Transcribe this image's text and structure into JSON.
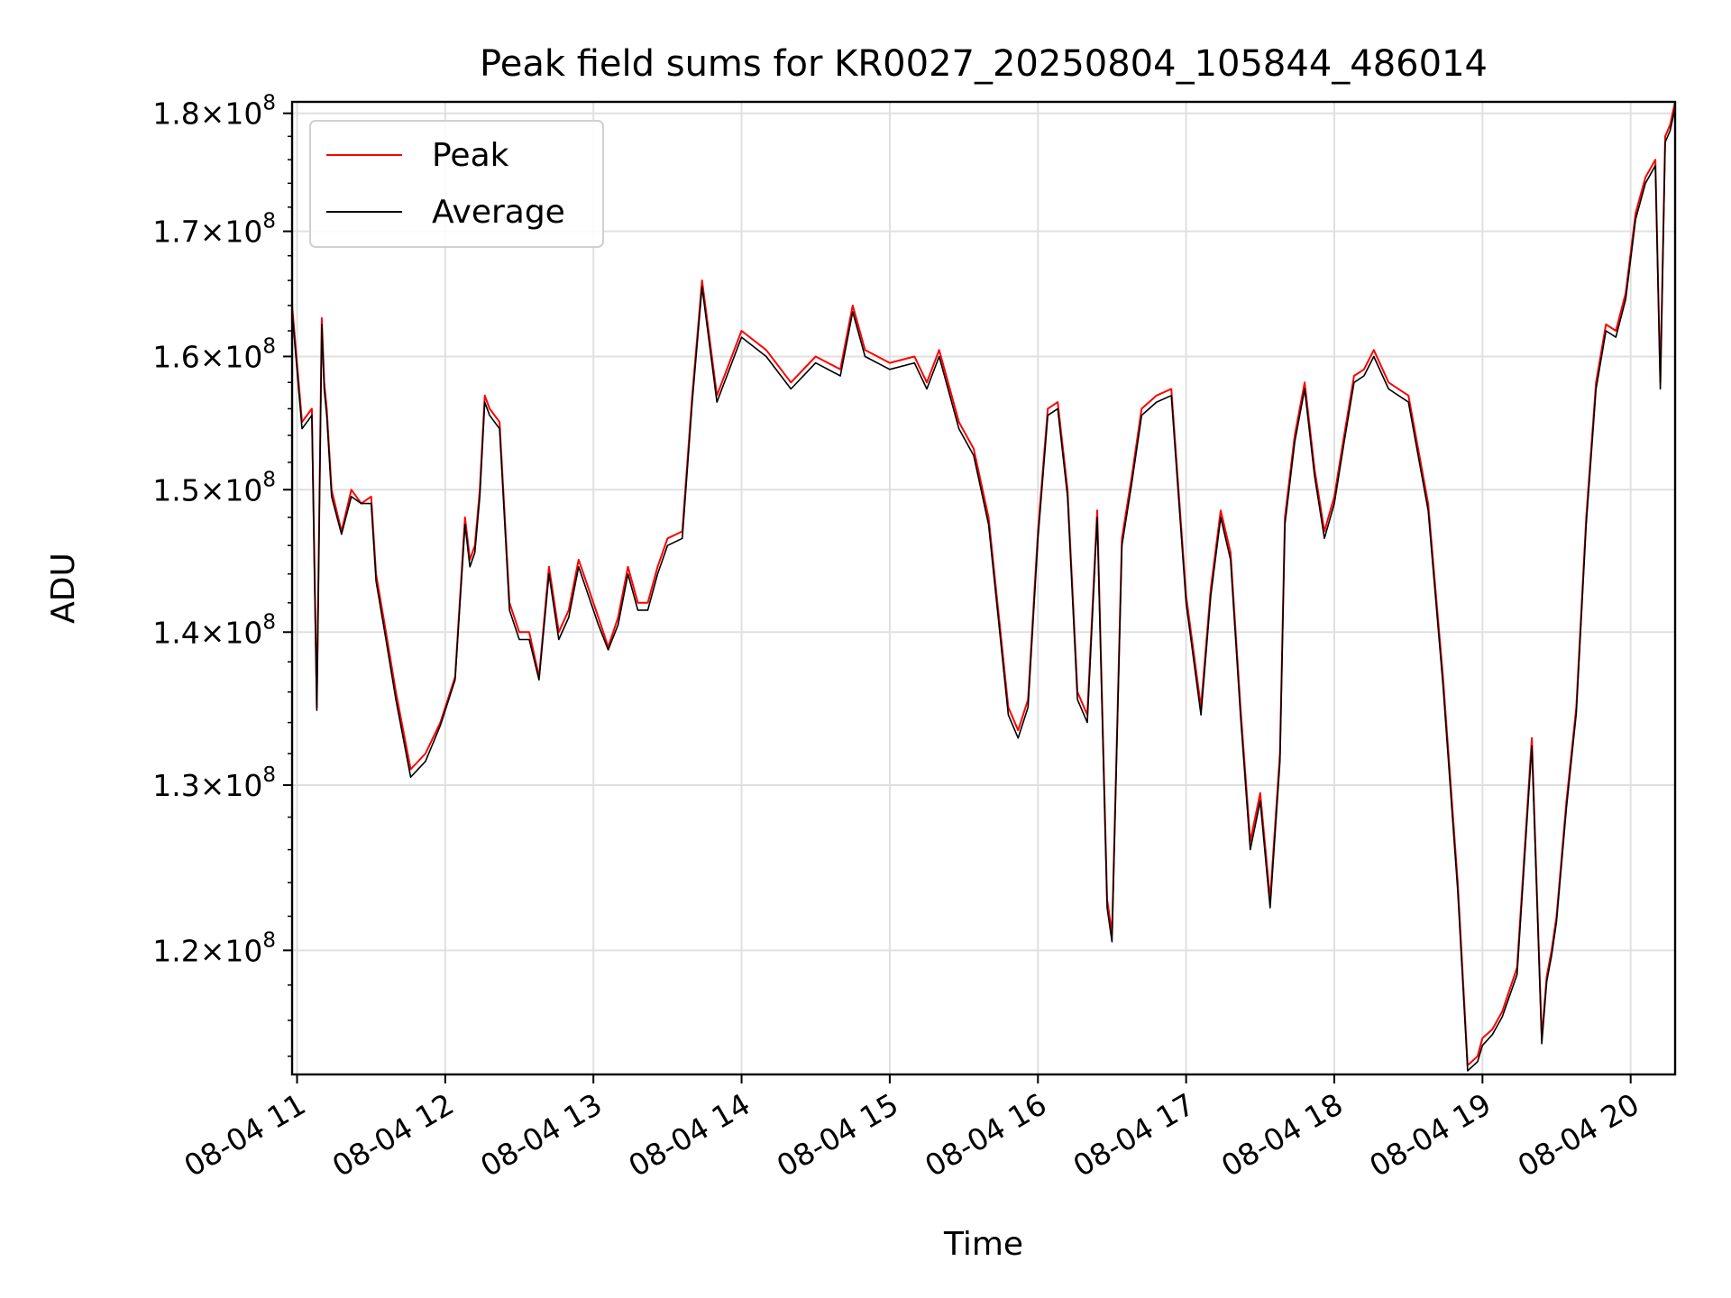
{
  "chart_data": {
    "type": "line",
    "title": "Peak field sums for KR0027_20250804_105844_486014",
    "xlabel": "Time",
    "ylabel": "ADU",
    "xlim": [
      "08-04 10:58",
      "08-04 20:18"
    ],
    "ylim": [
      113000000,
      181000000
    ],
    "y_scale": "log",
    "grid": true,
    "legend_position": "upper-left",
    "x_ticks": [
      "08-04 11",
      "08-04 12",
      "08-04 13",
      "08-04 14",
      "08-04 15",
      "08-04 16",
      "08-04 17",
      "08-04 18",
      "08-04 19",
      "08-04 20"
    ],
    "y_ticks": [
      {
        "value": 120000000,
        "mantissa": "1.2",
        "exp": "8"
      },
      {
        "value": 130000000,
        "mantissa": "1.3",
        "exp": "8"
      },
      {
        "value": 140000000,
        "mantissa": "1.4",
        "exp": "8"
      },
      {
        "value": 150000000,
        "mantissa": "1.5",
        "exp": "8"
      },
      {
        "value": 160000000,
        "mantissa": "1.6",
        "exp": "8"
      },
      {
        "value": 170000000,
        "mantissa": "1.7",
        "exp": "8"
      },
      {
        "value": 180000000,
        "mantissa": "1.8",
        "exp": "8"
      }
    ],
    "series": [
      {
        "name": "Peak",
        "color": "#ff0000"
      },
      {
        "name": "Average",
        "color": "#000000"
      }
    ],
    "x": [
      "08-04 10:58",
      "08-04 11:02",
      "08-04 11:06",
      "08-04 11:08",
      "08-04 11:10",
      "08-04 11:11",
      "08-04 11:12",
      "08-04 11:14",
      "08-04 11:18",
      "08-04 11:22",
      "08-04 11:26",
      "08-04 11:30",
      "08-04 11:32",
      "08-04 11:36",
      "08-04 11:40",
      "08-04 11:46",
      "08-04 11:52",
      "08-04 11:58",
      "08-04 12:04",
      "08-04 12:08",
      "08-04 12:10",
      "08-04 12:12",
      "08-04 12:14",
      "08-04 12:16",
      "08-04 12:18",
      "08-04 12:22",
      "08-04 12:26",
      "08-04 12:30",
      "08-04 12:34",
      "08-04 12:38",
      "08-04 12:42",
      "08-04 12:46",
      "08-04 12:50",
      "08-04 12:54",
      "08-04 12:58",
      "08-04 13:02",
      "08-04 13:06",
      "08-04 13:10",
      "08-04 13:14",
      "08-04 13:18",
      "08-04 13:22",
      "08-04 13:26",
      "08-04 13:30",
      "08-04 13:36",
      "08-04 13:40",
      "08-04 13:44",
      "08-04 13:50",
      "08-04 14:00",
      "08-04 14:10",
      "08-04 14:20",
      "08-04 14:30",
      "08-04 14:40",
      "08-04 14:45",
      "08-04 14:50",
      "08-04 15:00",
      "08-04 15:10",
      "08-04 15:15",
      "08-04 15:20",
      "08-04 15:28",
      "08-04 15:34",
      "08-04 15:40",
      "08-04 15:48",
      "08-04 15:52",
      "08-04 15:56",
      "08-04 16:00",
      "08-04 16:04",
      "08-04 16:08",
      "08-04 16:12",
      "08-04 16:16",
      "08-04 16:20",
      "08-04 16:24",
      "08-04 16:28",
      "08-04 16:30",
      "08-04 16:34",
      "08-04 16:38",
      "08-04 16:42",
      "08-04 16:48",
      "08-04 16:54",
      "08-04 17:00",
      "08-04 17:06",
      "08-04 17:10",
      "08-04 17:14",
      "08-04 17:18",
      "08-04 17:22",
      "08-04 17:26",
      "08-04 17:30",
      "08-04 17:34",
      "08-04 17:38",
      "08-04 17:40",
      "08-04 17:44",
      "08-04 17:48",
      "08-04 17:52",
      "08-04 17:56",
      "08-04 18:00",
      "08-04 18:04",
      "08-04 18:08",
      "08-04 18:12",
      "08-04 18:16",
      "08-04 18:22",
      "08-04 18:30",
      "08-04 18:38",
      "08-04 18:44",
      "08-04 18:50",
      "08-04 18:54",
      "08-04 18:58",
      "08-04 19:00",
      "08-04 19:04",
      "08-04 19:08",
      "08-04 19:14",
      "08-04 19:20",
      "08-04 19:24",
      "08-04 19:26",
      "08-04 19:28",
      "08-04 19:30",
      "08-04 19:34",
      "08-04 19:38",
      "08-04 19:42",
      "08-04 19:46",
      "08-04 19:50",
      "08-04 19:54",
      "08-04 19:58",
      "08-04 20:02",
      "08-04 20:06",
      "08-04 20:10",
      "08-04 20:12",
      "08-04 20:14",
      "08-04 20:16",
      "08-04 20:18"
    ],
    "peak": [
      164000000,
      155000000,
      156000000,
      135000000,
      163000000,
      158000000,
      156000000,
      150000000,
      147000000,
      150000000,
      149000000,
      149500000,
      144000000,
      140000000,
      136000000,
      131000000,
      132000000,
      134000000,
      137000000,
      148000000,
      145000000,
      146000000,
      150000000,
      157000000,
      156000000,
      155000000,
      142000000,
      140000000,
      140000000,
      137000000,
      144500000,
      140000000,
      141500000,
      145000000,
      143000000,
      141000000,
      139000000,
      141000000,
      144500000,
      142000000,
      142000000,
      144500000,
      146500000,
      147000000,
      157000000,
      166000000,
      157000000,
      162000000,
      160500000,
      158000000,
      160000000,
      159000000,
      164000000,
      160500000,
      159500000,
      160000000,
      158000000,
      160500000,
      155000000,
      153000000,
      148000000,
      135000000,
      133500000,
      135500000,
      147000000,
      156000000,
      156500000,
      150000000,
      136000000,
      134500000,
      148500000,
      123000000,
      121000000,
      146500000,
      151000000,
      156000000,
      157000000,
      157500000,
      142500000,
      135000000,
      143000000,
      148500000,
      145500000,
      135000000,
      126500000,
      129500000,
      123000000,
      132000000,
      148000000,
      154000000,
      158000000,
      151500000,
      147000000,
      149500000,
      154000000,
      158500000,
      159000000,
      160500000,
      158000000,
      157000000,
      149000000,
      137000000,
      124000000,
      113500000,
      114000000,
      115000000,
      115500000,
      116500000,
      119000000,
      133000000,
      115000000,
      118500000,
      120000000,
      122000000,
      129000000,
      135000000,
      148000000,
      158000000,
      162500000,
      162000000,
      165000000,
      171500000,
      174500000,
      176000000,
      158000000,
      178000000,
      179000000,
      181000000
    ],
    "average": [
      163500000,
      154500000,
      155500000,
      134800000,
      162500000,
      157500000,
      155500000,
      149500000,
      146800000,
      149500000,
      149000000,
      149000000,
      143500000,
      139500000,
      135500000,
      130500000,
      131500000,
      133800000,
      136800000,
      147500000,
      144500000,
      145500000,
      149500000,
      156500000,
      155500000,
      154500000,
      141500000,
      139500000,
      139500000,
      136800000,
      144000000,
      139500000,
      141000000,
      144500000,
      142500000,
      140500000,
      138800000,
      140500000,
      144000000,
      141500000,
      141500000,
      144000000,
      146000000,
      146500000,
      156500000,
      165500000,
      156500000,
      161500000,
      160000000,
      157500000,
      159500000,
      158500000,
      163500000,
      160000000,
      159000000,
      159500000,
      157500000,
      160000000,
      154500000,
      152500000,
      147500000,
      134500000,
      133000000,
      135000000,
      146500000,
      155500000,
      156000000,
      149500000,
      135500000,
      134000000,
      148000000,
      122500000,
      120500000,
      146000000,
      150500000,
      155500000,
      156500000,
      157000000,
      142000000,
      134500000,
      142500000,
      148000000,
      145000000,
      134500000,
      126000000,
      129000000,
      122500000,
      131500000,
      147500000,
      153500000,
      157500000,
      151000000,
      146500000,
      149000000,
      153500000,
      158000000,
      158500000,
      160000000,
      157500000,
      156500000,
      148500000,
      136500000,
      123500000,
      113200000,
      113700000,
      114600000,
      115200000,
      116200000,
      118600000,
      132500000,
      114700000,
      118200000,
      119700000,
      121700000,
      128600000,
      134600000,
      147500000,
      157500000,
      162000000,
      161500000,
      164500000,
      171000000,
      174000000,
      175500000,
      157500000,
      177500000,
      178500000,
      180500000
    ]
  }
}
